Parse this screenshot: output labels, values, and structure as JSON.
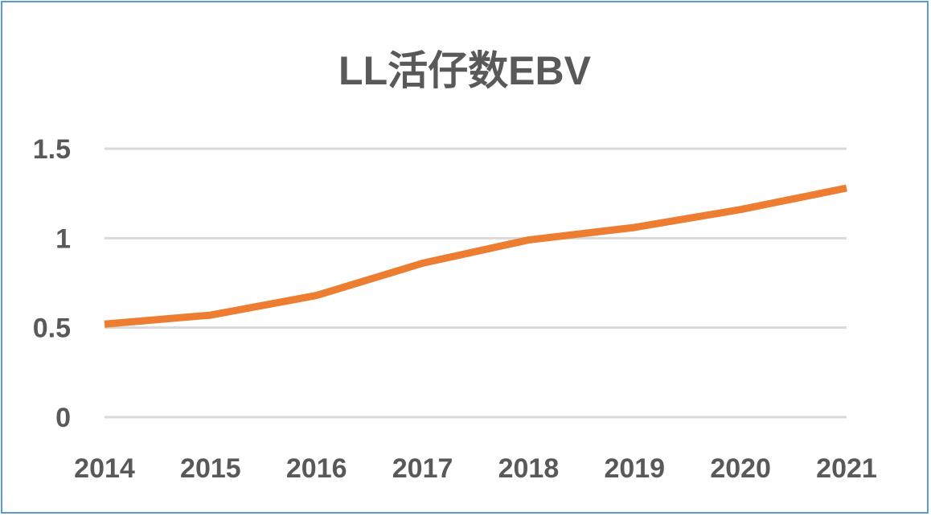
{
  "chart_data": {
    "type": "line",
    "title": "LL活仔数EBV",
    "xlabel": "",
    "ylabel": "",
    "categories": [
      "2014",
      "2015",
      "2016",
      "2017",
      "2018",
      "2019",
      "2020",
      "2021"
    ],
    "series": [
      {
        "name": "LL活仔数EBV",
        "values": [
          0.52,
          0.57,
          0.68,
          0.86,
          0.99,
          1.06,
          1.16,
          1.28
        ],
        "color": "#ed7d31"
      }
    ],
    "ylim": [
      0,
      1.5
    ],
    "yticks": [
      0,
      0.5,
      1,
      1.5
    ],
    "ytick_labels": [
      "0",
      "0.5",
      "1",
      "1.5"
    ],
    "grid": true,
    "legend": "none"
  }
}
